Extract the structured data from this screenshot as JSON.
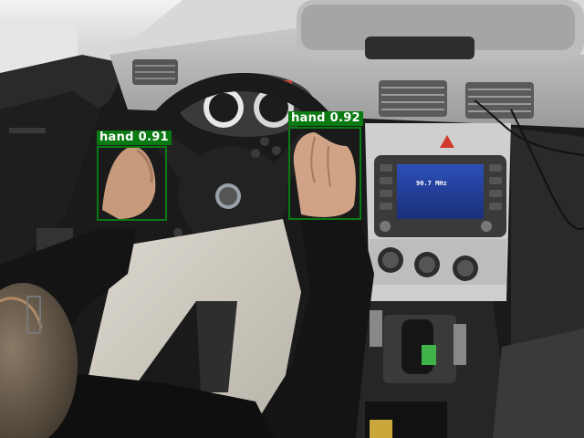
{
  "detections": [
    {
      "label": "hand",
      "score": "0.91",
      "text": "hand 0.91"
    },
    {
      "label": "hand",
      "score": "0.92",
      "text": "hand 0.92"
    }
  ],
  "radio_display": {
    "frequency": "90.7 MHz"
  },
  "colors": {
    "box": "#0a7a12",
    "box_text": "#ffffff"
  }
}
